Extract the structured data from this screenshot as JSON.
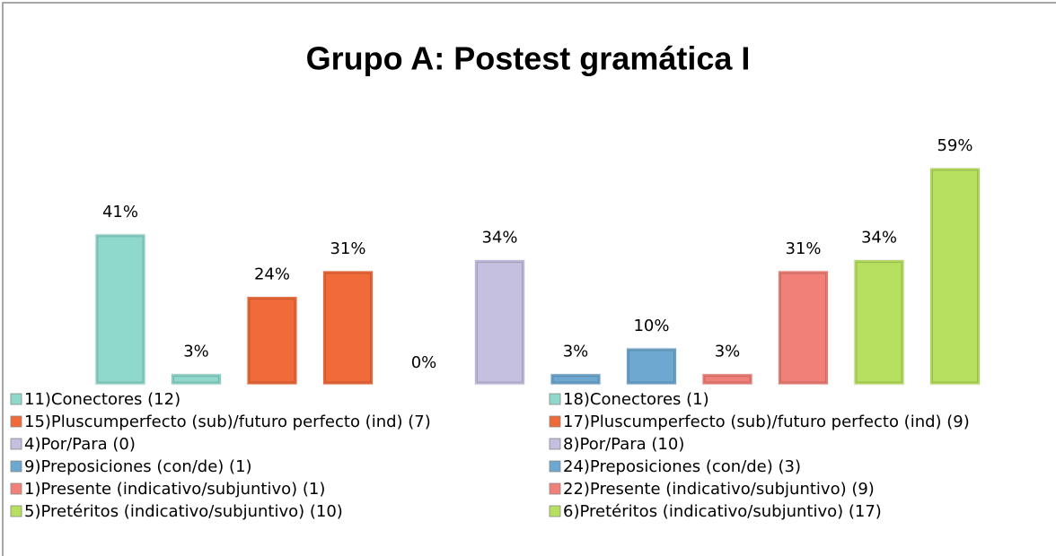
{
  "chart_data": {
    "type": "bar",
    "title": "Grupo A: Postest gramática I",
    "series": [
      {
        "name": "11)Conectores (12)",
        "color": "#8fd8cc",
        "values": [
          41
        ],
        "value_labels": [
          "41%"
        ]
      },
      {
        "name": "18)Conectores (1)",
        "color": "#8fd8cc",
        "values": [
          3
        ],
        "value_labels": [
          "3%"
        ]
      },
      {
        "name": "15)Pluscumperfecto (sub)/futuro perfecto (ind) (7)",
        "color": "#f06a3a",
        "values": [
          24
        ],
        "value_labels": [
          "24%"
        ]
      },
      {
        "name": "17)Pluscumperfecto (sub)/futuro perfecto (ind) (9)",
        "color": "#f06a3a",
        "values": [
          31
        ],
        "value_labels": [
          "31%"
        ]
      },
      {
        "name": "4)Por/Para (0)",
        "color": "#c5bfe0",
        "values": [
          0
        ],
        "value_labels": [
          "0%"
        ]
      },
      {
        "name": "8)Por/Para (10)",
        "color": "#c5bfe0",
        "values": [
          34
        ],
        "value_labels": [
          "34%"
        ]
      },
      {
        "name": "9)Preposiciones (con/de) (1)",
        "color": "#6ea8d0",
        "values": [
          3
        ],
        "value_labels": [
          "3%"
        ]
      },
      {
        "name": "24)Preposiciones (con/de) (3)",
        "color": "#6ea8d0",
        "values": [
          10
        ],
        "value_labels": [
          "10%"
        ]
      },
      {
        "name": "1)Presente (indicativo/subjuntivo) (1)",
        "color": "#f08078",
        "values": [
          3
        ],
        "value_labels": [
          "3%"
        ]
      },
      {
        "name": "22)Presente (indicativo/subjuntivo) (9)",
        "color": "#f08078",
        "values": [
          31
        ],
        "value_labels": [
          "31%"
        ]
      },
      {
        "name": "5)Pretéritos (indicativo/subjuntivo) (10)",
        "color": "#b8e060",
        "values": [
          34
        ],
        "value_labels": [
          "34%"
        ]
      },
      {
        "name": "6)Pretéritos (indicativo/subjuntivo) (17)",
        "color": "#b8e060",
        "values": [
          59
        ],
        "value_labels": [
          "59%"
        ]
      }
    ]
  }
}
